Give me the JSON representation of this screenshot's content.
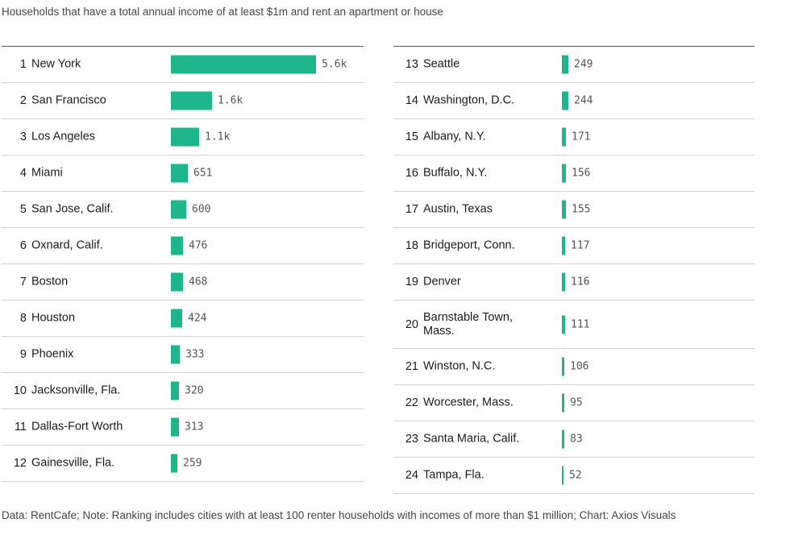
{
  "chart_data": {
    "type": "bar",
    "title": "",
    "subtitle": "Households that have a total annual income of at least $1m and rent an apartment or house",
    "source": "Data: RentCafe; Note: Ranking includes cities with at least 100 renter households with incomes of more than $1 million; Chart: Axios Visuals",
    "bar_color": "#1fb58a",
    "xlim": [
      0,
      5600
    ],
    "rows": [
      {
        "rank": "1",
        "city": "New York",
        "value": 5600,
        "label": "5.6k"
      },
      {
        "rank": "2",
        "city": "San Francisco",
        "value": 1600,
        "label": "1.6k"
      },
      {
        "rank": "3",
        "city": "Los Angeles",
        "value": 1100,
        "label": "1.1k"
      },
      {
        "rank": "4",
        "city": "Miami",
        "value": 651,
        "label": "651"
      },
      {
        "rank": "5",
        "city": "San Jose, Calif.",
        "value": 600,
        "label": "600"
      },
      {
        "rank": "6",
        "city": "Oxnard, Calif.",
        "value": 476,
        "label": "476"
      },
      {
        "rank": "7",
        "city": "Boston",
        "value": 468,
        "label": "468"
      },
      {
        "rank": "8",
        "city": "Houston",
        "value": 424,
        "label": "424"
      },
      {
        "rank": "9",
        "city": "Phoenix",
        "value": 333,
        "label": "333"
      },
      {
        "rank": "10",
        "city": "Jacksonville, Fla.",
        "value": 320,
        "label": "320"
      },
      {
        "rank": "11",
        "city": "Dallas-Fort Worth",
        "value": 313,
        "label": "313"
      },
      {
        "rank": "12",
        "city": "Gainesville, Fla.",
        "value": 259,
        "label": "259"
      },
      {
        "rank": "13",
        "city": "Seattle",
        "value": 249,
        "label": "249"
      },
      {
        "rank": "14",
        "city": "Washington, D.C.",
        "value": 244,
        "label": "244"
      },
      {
        "rank": "15",
        "city": "Albany, N.Y.",
        "value": 171,
        "label": "171"
      },
      {
        "rank": "16",
        "city": "Buffalo, N.Y.",
        "value": 156,
        "label": "156"
      },
      {
        "rank": "17",
        "city": "Austin, Texas",
        "value": 155,
        "label": "155"
      },
      {
        "rank": "18",
        "city": "Bridgeport, Conn.",
        "value": 117,
        "label": "117"
      },
      {
        "rank": "19",
        "city": "Denver",
        "value": 116,
        "label": "116"
      },
      {
        "rank": "20",
        "city": "Barnstable Town, Mass.",
        "value": 111,
        "label": "111"
      },
      {
        "rank": "21",
        "city": "Winston, N.C.",
        "value": 106,
        "label": "106"
      },
      {
        "rank": "22",
        "city": "Worcester, Mass.",
        "value": 95,
        "label": "95"
      },
      {
        "rank": "23",
        "city": "Santa Maria, Calif.",
        "value": 83,
        "label": "83"
      },
      {
        "rank": "24",
        "city": "Tampa, Fla.",
        "value": 52,
        "label": "52"
      }
    ]
  }
}
